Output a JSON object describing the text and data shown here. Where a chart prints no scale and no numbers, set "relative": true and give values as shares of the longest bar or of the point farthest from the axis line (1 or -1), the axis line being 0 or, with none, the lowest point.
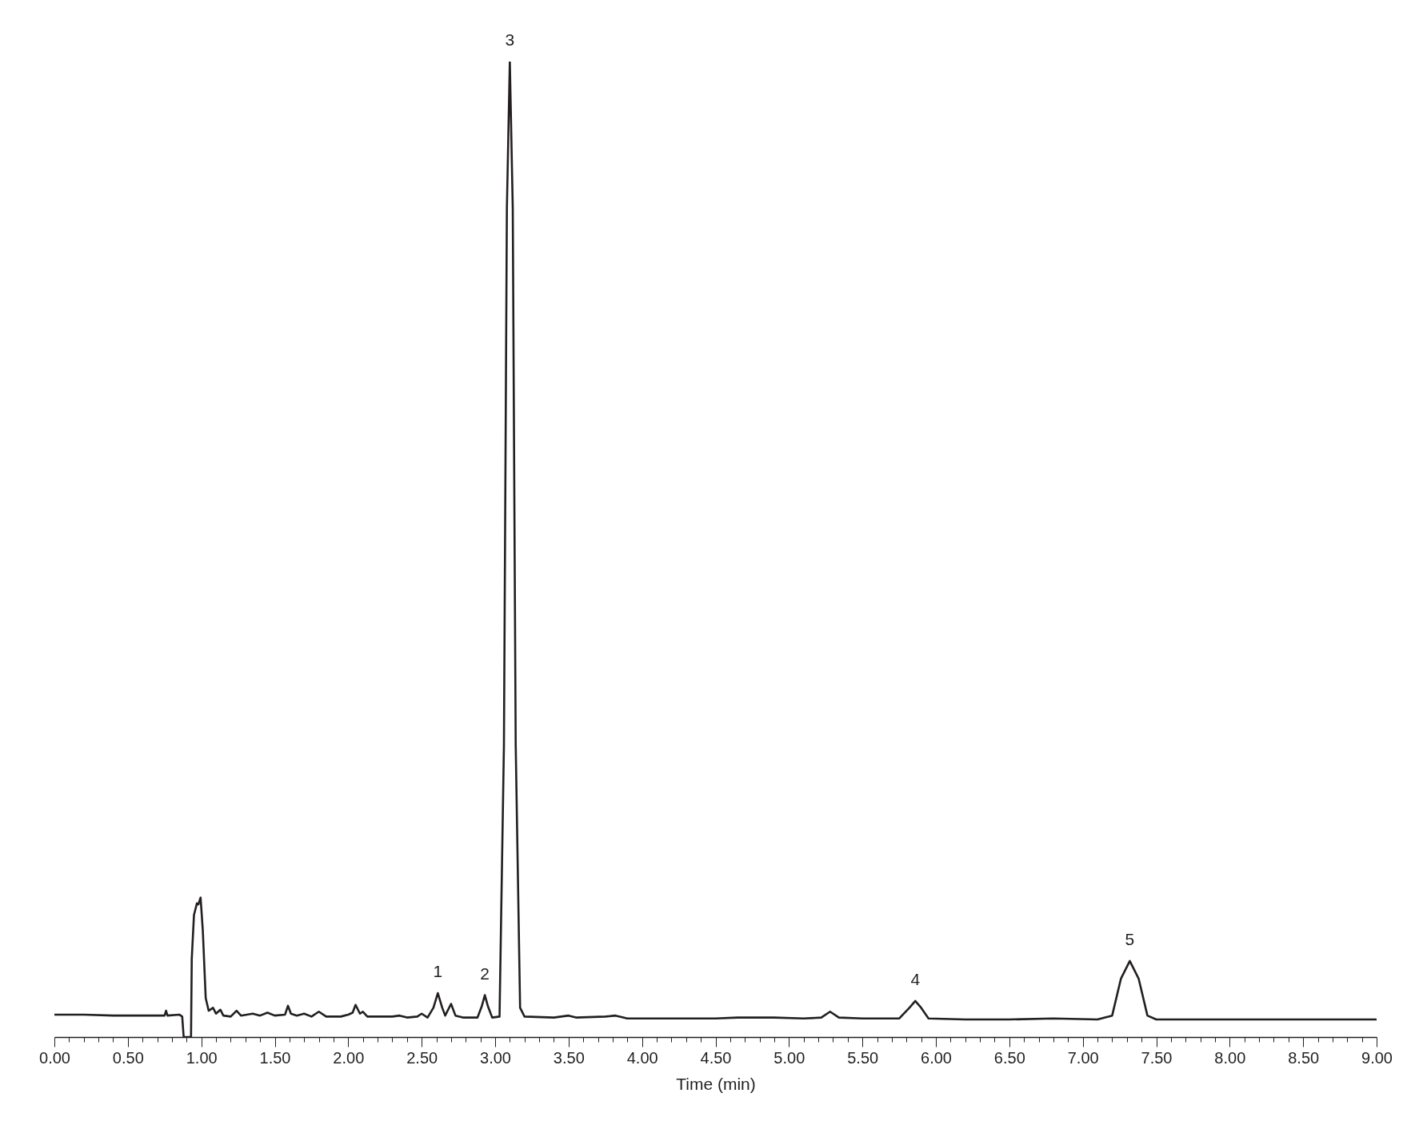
{
  "chart_data": {
    "type": "line",
    "relative": true,
    "xlabel": "Time (min)",
    "xlim": [
      0,
      9
    ],
    "xticks": [
      {
        "value": 0,
        "label": "0.00"
      },
      {
        "value": 0.1,
        "label": null
      },
      {
        "value": 0.2,
        "label": null
      },
      {
        "value": 0.3,
        "label": null
      },
      {
        "value": 0.4,
        "label": null
      },
      {
        "value": 0.5,
        "label": "0.50"
      },
      {
        "value": 0.6,
        "label": null
      },
      {
        "value": 0.7,
        "label": null
      },
      {
        "value": 0.8,
        "label": null
      },
      {
        "value": 0.9,
        "label": null
      },
      {
        "value": 1,
        "label": "1.00"
      },
      {
        "value": 1.1,
        "label": null
      },
      {
        "value": 1.2,
        "label": null
      },
      {
        "value": 1.3,
        "label": null
      },
      {
        "value": 1.4,
        "label": null
      },
      {
        "value": 1.5,
        "label": "1.50"
      },
      {
        "value": 1.6,
        "label": null
      },
      {
        "value": 1.7,
        "label": null
      },
      {
        "value": 1.8,
        "label": null
      },
      {
        "value": 1.9,
        "label": null
      },
      {
        "value": 2,
        "label": "2.00"
      },
      {
        "value": 2.1,
        "label": null
      },
      {
        "value": 2.2,
        "label": null
      },
      {
        "value": 2.3,
        "label": null
      },
      {
        "value": 2.4,
        "label": null
      },
      {
        "value": 2.5,
        "label": "2.50"
      },
      {
        "value": 2.6,
        "label": null
      },
      {
        "value": 2.7,
        "label": null
      },
      {
        "value": 2.8,
        "label": null
      },
      {
        "value": 2.9,
        "label": null
      },
      {
        "value": 3,
        "label": "3.00"
      },
      {
        "value": 3.1,
        "label": null
      },
      {
        "value": 3.2,
        "label": null
      },
      {
        "value": 3.3,
        "label": null
      },
      {
        "value": 3.4,
        "label": null
      },
      {
        "value": 3.5,
        "label": "3.50"
      },
      {
        "value": 3.6,
        "label": null
      },
      {
        "value": 3.7,
        "label": null
      },
      {
        "value": 3.8,
        "label": null
      },
      {
        "value": 3.9,
        "label": null
      },
      {
        "value": 4,
        "label": "4.00"
      },
      {
        "value": 4.1,
        "label": null
      },
      {
        "value": 4.2,
        "label": null
      },
      {
        "value": 4.3,
        "label": null
      },
      {
        "value": 4.4,
        "label": null
      },
      {
        "value": 4.5,
        "label": "4.50"
      },
      {
        "value": 4.6,
        "label": null
      },
      {
        "value": 4.7,
        "label": null
      },
      {
        "value": 4.8,
        "label": null
      },
      {
        "value": 4.9,
        "label": null
      },
      {
        "value": 5,
        "label": "5.00"
      },
      {
        "value": 5.1,
        "label": null
      },
      {
        "value": 5.2,
        "label": null
      },
      {
        "value": 5.3,
        "label": null
      },
      {
        "value": 5.4,
        "label": null
      },
      {
        "value": 5.5,
        "label": "5.50"
      },
      {
        "value": 5.6,
        "label": null
      },
      {
        "value": 5.7,
        "label": null
      },
      {
        "value": 5.8,
        "label": null
      },
      {
        "value": 5.9,
        "label": null
      },
      {
        "value": 6,
        "label": "6.00"
      },
      {
        "value": 6.1,
        "label": null
      },
      {
        "value": 6.2,
        "label": null
      },
      {
        "value": 6.3,
        "label": null
      },
      {
        "value": 6.4,
        "label": null
      },
      {
        "value": 6.5,
        "label": "6.50"
      },
      {
        "value": 6.6,
        "label": null
      },
      {
        "value": 6.7,
        "label": null
      },
      {
        "value": 6.8,
        "label": null
      },
      {
        "value": 6.9,
        "label": null
      },
      {
        "value": 7,
        "label": "7.00"
      },
      {
        "value": 7.1,
        "label": null
      },
      {
        "value": 7.2,
        "label": null
      },
      {
        "value": 7.3,
        "label": null
      },
      {
        "value": 7.4,
        "label": null
      },
      {
        "value": 7.5,
        "label": "7.50"
      },
      {
        "value": 7.6,
        "label": null
      },
      {
        "value": 7.7,
        "label": null
      },
      {
        "value": 7.8,
        "label": null
      },
      {
        "value": 7.9,
        "label": null
      },
      {
        "value": 8,
        "label": "8.00"
      },
      {
        "value": 8.1,
        "label": null
      },
      {
        "value": 8.2,
        "label": null
      },
      {
        "value": 8.3,
        "label": null
      },
      {
        "value": 8.4,
        "label": null
      },
      {
        "value": 8.5,
        "label": "8.50"
      },
      {
        "value": 8.6,
        "label": null
      },
      {
        "value": 8.7,
        "label": null
      },
      {
        "value": 8.8,
        "label": null
      },
      {
        "value": 8.9,
        "label": null
      },
      {
        "value": 9,
        "label": "9.00"
      }
    ],
    "x": [
      0,
      0.2,
      0.4,
      0.6,
      0.75,
      0.76,
      0.77,
      0.85,
      0.87,
      0.88,
      0.93,
      0.935,
      0.95,
      0.97,
      0.98,
      0.995,
      1.01,
      1.03,
      1.05,
      1.08,
      1.1,
      1.13,
      1.15,
      1.2,
      1.24,
      1.27,
      1.35,
      1.4,
      1.45,
      1.5,
      1.57,
      1.59,
      1.61,
      1.65,
      1.7,
      1.75,
      1.8,
      1.85,
      1.95,
      2,
      2.03,
      2.05,
      2.08,
      2.1,
      2.13,
      2.2,
      2.3,
      2.35,
      2.4,
      2.47,
      2.5,
      2.54,
      2.58,
      2.61,
      2.64,
      2.66,
      2.7,
      2.73,
      2.78,
      2.88,
      2.91,
      2.93,
      2.95,
      2.98,
      3.03,
      3.06,
      3.08,
      3.1,
      3.12,
      3.14,
      3.17,
      3.2,
      3.4,
      3.5,
      3.55,
      3.75,
      3.82,
      3.9,
      4.2,
      4.5,
      4.65,
      4.9,
      5.1,
      5.22,
      5.28,
      5.34,
      5.5,
      5.75,
      5.82,
      5.86,
      5.9,
      5.95,
      6.2,
      6.5,
      6.8,
      7.1,
      7.2,
      7.26,
      7.32,
      7.38,
      7.44,
      7.5,
      8,
      8.5,
      9
    ],
    "series": [
      {
        "color": "#231f20",
        "values": [
          0.023,
          0.023,
          0.022,
          0.022,
          0.022,
          0.027,
          0.022,
          0.023,
          0.021,
          0,
          0,
          0.08,
          0.125,
          0.137,
          0.136,
          0.143,
          0.11,
          0.04,
          0.027,
          0.03,
          0.024,
          0.028,
          0.022,
          0.021,
          0.027,
          0.022,
          0.024,
          0.022,
          0.025,
          0.022,
          0.023,
          0.032,
          0.024,
          0.022,
          0.024,
          0.021,
          0.026,
          0.021,
          0.021,
          0.023,
          0.025,
          0.033,
          0.024,
          0.026,
          0.021,
          0.021,
          0.021,
          0.022,
          0.02,
          0.021,
          0.024,
          0.02,
          0.03,
          0.045,
          0.03,
          0.022,
          0.034,
          0.022,
          0.02,
          0.02,
          0.032,
          0.043,
          0.032,
          0.02,
          0.021,
          0.3,
          0.85,
          1,
          0.85,
          0.3,
          0.03,
          0.021,
          0.02,
          0.022,
          0.02,
          0.021,
          0.022,
          0.019,
          0.019,
          0.019,
          0.02,
          0.02,
          0.019,
          0.02,
          0.026,
          0.02,
          0.019,
          0.019,
          0.03,
          0.037,
          0.03,
          0.019,
          0.018,
          0.018,
          0.019,
          0.018,
          0.022,
          0.06,
          0.078,
          0.06,
          0.022,
          0.018,
          0.018,
          0.018,
          0.018
        ]
      }
    ],
    "annotations": [
      {
        "text": "1",
        "x": 2.61,
        "y": 0.045
      },
      {
        "text": "2",
        "x": 2.93,
        "y": 0.043
      },
      {
        "text": "3",
        "x": 3.1,
        "y": 1
      },
      {
        "text": "4",
        "x": 5.86,
        "y": 0.037
      },
      {
        "text": "5",
        "x": 7.32,
        "y": 0.078
      }
    ]
  }
}
